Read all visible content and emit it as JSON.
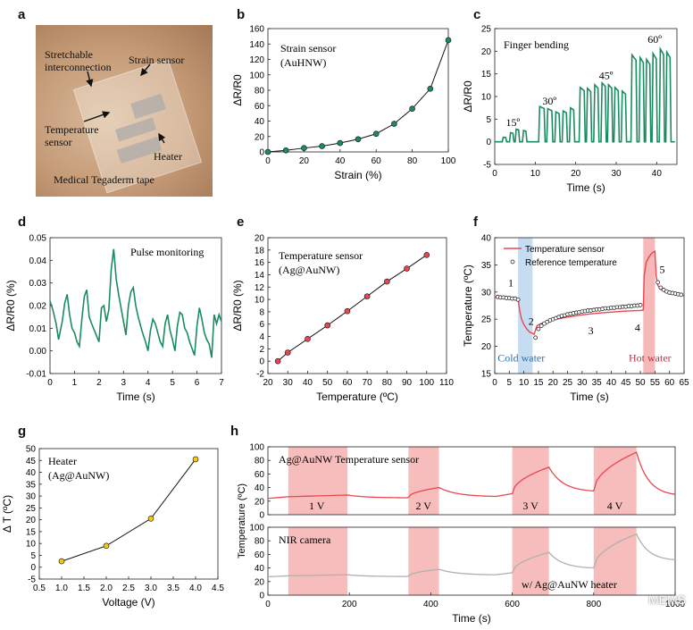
{
  "panel_letters": {
    "a": "a",
    "b": "b",
    "c": "c",
    "d": "d",
    "e": "e",
    "f": "f",
    "g": "g",
    "h": "h"
  },
  "photo": {
    "stretchable": "Stretchable",
    "interconnection": "interconnection",
    "strain_sensor": "Strain sensor",
    "temperature": "Temperature",
    "sensor": "sensor",
    "heater": "Heater",
    "tape": "Medical Tegaderm tape"
  },
  "watermark": "MEMS",
  "colors": {
    "green": "#1a8c5e",
    "red": "#e8474f",
    "yellow": "#f5c518",
    "gray": "#b0b0b0",
    "pink": "#f4a6a6",
    "blue": "#b8d4ee"
  },
  "chart_data": [
    {
      "id": "b",
      "type": "line",
      "xlabel": "Strain (%)",
      "ylabel": "ΔR/R0",
      "xlim": [
        0,
        100
      ],
      "ylim": [
        0,
        160
      ],
      "xticks": [
        "0",
        "20",
        "40",
        "60",
        "80",
        "100"
      ],
      "yticks": [
        "0",
        "20",
        "40",
        "60",
        "80",
        "100",
        "120",
        "140",
        "160"
      ],
      "annotation": [
        "Strain sensor",
        "(AuHNW)"
      ],
      "x": [
        0,
        10,
        20,
        30,
        40,
        50,
        60,
        70,
        80,
        90,
        100
      ],
      "y": [
        0,
        2,
        5,
        7.5,
        11.5,
        16.5,
        23.5,
        36.5,
        56,
        82,
        145
      ]
    },
    {
      "id": "c",
      "type": "line",
      "xlabel": "Time (s)",
      "ylabel": "ΔR/R0",
      "xlim": [
        0,
        45
      ],
      "ylim": [
        -5,
        25
      ],
      "xticks": [
        "0",
        "10",
        "20",
        "30",
        "40"
      ],
      "yticks": [
        "-5",
        "0",
        "5",
        "10",
        "15",
        "20",
        "25"
      ],
      "annotation": "Finger bending",
      "angle_labels": [
        {
          "text": "15º",
          "x": 4.5,
          "y": 3.5
        },
        {
          "text": "30º",
          "x": 13.5,
          "y": 8.2
        },
        {
          "text": "45º",
          "x": 27.5,
          "y": 13.8
        },
        {
          "text": "60º",
          "x": 39.5,
          "y": 21.8
        }
      ],
      "pulses": [
        {
          "s": 2.0,
          "e": 2.8,
          "h": 1.0
        },
        {
          "s": 3.8,
          "e": 4.6,
          "h": 2.0
        },
        {
          "s": 5.2,
          "e": 6.0,
          "h": 2.8
        },
        {
          "s": 7.0,
          "e": 7.8,
          "h": 2.5
        },
        {
          "s": 11.0,
          "e": 12.3,
          "h": 7.8
        },
        {
          "s": 13.0,
          "e": 14.2,
          "h": 7.3
        },
        {
          "s": 15.0,
          "e": 16.0,
          "h": 6.6
        },
        {
          "s": 16.8,
          "e": 17.8,
          "h": 6.8
        },
        {
          "s": 18.6,
          "e": 19.6,
          "h": 7.5
        },
        {
          "s": 21.0,
          "e": 22.2,
          "h": 12.0
        },
        {
          "s": 22.8,
          "e": 23.8,
          "h": 11.8
        },
        {
          "s": 24.6,
          "e": 25.6,
          "h": 12.6
        },
        {
          "s": 26.4,
          "e": 27.4,
          "h": 13.0
        },
        {
          "s": 28.0,
          "e": 29.0,
          "h": 12.6
        },
        {
          "s": 29.6,
          "e": 30.6,
          "h": 12.0
        },
        {
          "s": 31.4,
          "e": 32.4,
          "h": 11.2
        },
        {
          "s": 33.8,
          "e": 35.0,
          "h": 19.2
        },
        {
          "s": 35.8,
          "e": 36.8,
          "h": 18.6
        },
        {
          "s": 37.4,
          "e": 38.4,
          "h": 18.2
        },
        {
          "s": 39.0,
          "e": 40.0,
          "h": 19.5
        },
        {
          "s": 40.8,
          "e": 41.8,
          "h": 20.5
        },
        {
          "s": 42.4,
          "e": 43.4,
          "h": 19.8
        }
      ]
    },
    {
      "id": "d",
      "type": "line",
      "xlabel": "Time (s)",
      "ylabel": "ΔR/R0 (%)",
      "xlim": [
        0,
        7
      ],
      "ylim": [
        -0.01,
        0.05
      ],
      "xticks": [
        "0",
        "1",
        "2",
        "3",
        "4",
        "5",
        "6",
        "7"
      ],
      "yticks": [
        "-0.01",
        "0.00",
        "0.01",
        "0.02",
        "0.03",
        "0.04",
        "0.05"
      ],
      "annotation": "Pulse monitoring",
      "x": [
        0.0,
        0.12,
        0.25,
        0.35,
        0.5,
        0.6,
        0.7,
        0.8,
        0.9,
        1.0,
        1.1,
        1.2,
        1.3,
        1.4,
        1.5,
        1.6,
        1.7,
        1.85,
        2.0,
        2.1,
        2.2,
        2.3,
        2.4,
        2.5,
        2.6,
        2.7,
        2.8,
        2.95,
        3.1,
        3.2,
        3.3,
        3.4,
        3.5,
        3.6,
        3.75,
        3.9,
        4.0,
        4.1,
        4.2,
        4.3,
        4.4,
        4.5,
        4.6,
        4.7,
        4.8,
        4.9,
        5.0,
        5.1,
        5.2,
        5.3,
        5.4,
        5.5,
        5.6,
        5.7,
        5.8,
        5.9,
        6.0,
        6.1,
        6.2,
        6.3,
        6.4,
        6.5,
        6.6,
        6.7,
        6.8,
        6.9,
        7.0
      ],
      "y": [
        0.022,
        0.018,
        0.012,
        0.005,
        0.013,
        0.021,
        0.025,
        0.016,
        0.01,
        0.008,
        0.004,
        0.002,
        0.014,
        0.024,
        0.027,
        0.015,
        0.012,
        0.008,
        0.004,
        0.019,
        0.02,
        0.013,
        0.018,
        0.036,
        0.045,
        0.032,
        0.025,
        0.016,
        0.007,
        0.02,
        0.026,
        0.028,
        0.02,
        0.015,
        0.009,
        0.004,
        0.0,
        0.009,
        0.014,
        0.012,
        0.008,
        0.004,
        0.002,
        0.012,
        0.016,
        0.009,
        0.005,
        0.0,
        0.011,
        0.017,
        0.016,
        0.01,
        0.008,
        0.004,
        0.001,
        -0.002,
        0.011,
        0.019,
        0.014,
        0.008,
        0.005,
        0.003,
        -0.003,
        0.016,
        0.012,
        0.016,
        0.013
      ]
    },
    {
      "id": "e",
      "type": "line",
      "xlabel": "Temperature (ºC)",
      "ylabel": "ΔR/R0 (%)",
      "xlim": [
        20,
        110
      ],
      "ylim": [
        -2,
        20
      ],
      "xticks": [
        "20",
        "30",
        "40",
        "50",
        "60",
        "70",
        "80",
        "90",
        "100",
        "110"
      ],
      "yticks": [
        "-2",
        "0",
        "2",
        "4",
        "6",
        "8",
        "10",
        "12",
        "14",
        "16",
        "18",
        "20"
      ],
      "annotation": [
        "Temperature sensor",
        "(Ag@AuNW)"
      ],
      "x": [
        25,
        30,
        40,
        50,
        60,
        70,
        80,
        90,
        100
      ],
      "y": [
        0,
        1.4,
        3.6,
        5.8,
        8.1,
        10.5,
        12.9,
        15.0,
        17.2
      ]
    },
    {
      "id": "f",
      "type": "line",
      "xlabel": "Time (s)",
      "ylabel": "Temperature (ºC)",
      "xlim": [
        0,
        65
      ],
      "ylim": [
        15,
        40
      ],
      "xticks": [
        "0",
        "5",
        "10",
        "15",
        "20",
        "25",
        "30",
        "35",
        "40",
        "45",
        "50",
        "55",
        "60",
        "65"
      ],
      "yticks": [
        "15",
        "20",
        "25",
        "30",
        "35",
        "40"
      ],
      "legend": [
        "Temperature sensor",
        "Reference temperature"
      ],
      "region_labels": {
        "cold": "Cold water",
        "hot": "Hot water"
      },
      "stage_labels": [
        "1",
        "2",
        "3",
        "4",
        "5"
      ],
      "bands": [
        {
          "from": 8,
          "to": 13,
          "kind": "cold"
        },
        {
          "from": 51,
          "to": 55,
          "kind": "hot"
        }
      ],
      "sensor_x": [
        0,
        8,
        8.6,
        9.2,
        10,
        11,
        12,
        13,
        13.5,
        14.5,
        16,
        18,
        20,
        25,
        30,
        35,
        40,
        45,
        50,
        51,
        51.3,
        52,
        53,
        54,
        55,
        55.4,
        56,
        57,
        58,
        60,
        62,
        65
      ],
      "sensor_y": [
        29,
        28.8,
        26.5,
        25,
        24,
        23.2,
        22.6,
        22.4,
        22.2,
        23.8,
        24.2,
        24.6,
        24.9,
        25.4,
        25.8,
        26.1,
        26.3,
        26.5,
        26.6,
        26.7,
        33,
        35.5,
        36.5,
        37.2,
        37.5,
        33,
        31.2,
        30.5,
        30.2,
        29.9,
        29.6,
        29.3
      ],
      "ref_x": [
        1,
        2,
        3,
        4,
        5,
        6,
        7,
        8,
        14,
        15,
        16,
        17,
        18,
        19,
        20,
        21,
        22,
        23,
        24,
        25,
        26,
        27,
        28,
        29,
        30,
        31,
        32,
        33,
        34,
        35,
        36,
        37,
        38,
        39,
        40,
        41,
        42,
        43,
        44,
        45,
        46,
        47,
        48,
        49,
        50,
        56,
        57,
        58,
        59,
        60,
        61,
        62,
        63,
        64
      ],
      "ref_y": [
        29.1,
        29.0,
        29.0,
        28.9,
        28.9,
        28.8,
        28.8,
        28.6,
        21.6,
        23.2,
        23.8,
        24.2,
        24.5,
        24.8,
        25.0,
        25.2,
        25.4,
        25.6,
        25.7,
        25.9,
        26.0,
        26.1,
        26.2,
        26.3,
        26.4,
        26.5,
        26.6,
        26.6,
        26.7,
        26.8,
        26.8,
        26.9,
        27.0,
        27.0,
        27.1,
        27.1,
        27.2,
        27.2,
        27.3,
        27.3,
        27.4,
        27.4,
        27.5,
        27.5,
        27.6,
        31.8,
        30.8,
        30.4,
        30.1,
        29.9,
        29.8,
        29.7,
        29.6,
        29.5
      ]
    },
    {
      "id": "g",
      "type": "line",
      "xlabel": "Voltage (V)",
      "ylabel": "Δ T (ºC)",
      "xlim": [
        0.5,
        4.5
      ],
      "ylim": [
        -5,
        50
      ],
      "xticks": [
        "0.5",
        "1.0",
        "1.5",
        "2.0",
        "2.5",
        "3.0",
        "3.5",
        "4.0",
        "4.5"
      ],
      "yticks": [
        "-5",
        "0",
        "5",
        "10",
        "15",
        "20",
        "25",
        "30",
        "35",
        "40",
        "45",
        "50"
      ],
      "annotation": [
        "Heater",
        "(Ag@AuNW)"
      ],
      "x": [
        1,
        2,
        3,
        4
      ],
      "y": [
        2.5,
        9,
        20.5,
        45.5
      ]
    },
    {
      "id": "h",
      "type": "line",
      "xlabel": "Time (s)",
      "ylabel": "Temperature (ºC)",
      "xlim": [
        0,
        1000
      ],
      "xticks": [
        "0",
        "200",
        "400",
        "600",
        "800",
        "1000"
      ],
      "top": {
        "ylim": [
          0,
          100
        ],
        "yticks": [
          "0",
          "20",
          "40",
          "60",
          "80",
          "100"
        ],
        "annotation": "Ag@AuNW Temperature sensor",
        "series": [
          {
            "t": 0,
            "v": 24
          },
          {
            "t": 50,
            "v": 26.5
          },
          {
            "t": 195,
            "v": 29
          },
          {
            "t": 340,
            "v": 25
          },
          {
            "t": 345,
            "v": 25.5
          },
          {
            "t": 420,
            "v": 40
          },
          {
            "t": 560,
            "v": 27
          },
          {
            "t": 600,
            "v": 31
          },
          {
            "t": 690,
            "v": 70
          },
          {
            "t": 800,
            "v": 35
          },
          {
            "t": 905,
            "v": 92
          },
          {
            "t": 1000,
            "v": 30
          }
        ]
      },
      "bottom": {
        "ylim": [
          0,
          100
        ],
        "yticks": [
          "0",
          "20",
          "40",
          "60",
          "80",
          "100"
        ],
        "annotation": "NIR camera",
        "note": "w/ Ag@AuNW heater",
        "series": [
          {
            "t": 0,
            "v": 27
          },
          {
            "t": 50,
            "v": 28.5
          },
          {
            "t": 195,
            "v": 30
          },
          {
            "t": 340,
            "v": 27.5
          },
          {
            "t": 345,
            "v": 28
          },
          {
            "t": 420,
            "v": 38
          },
          {
            "t": 560,
            "v": 30
          },
          {
            "t": 600,
            "v": 33
          },
          {
            "t": 690,
            "v": 63
          },
          {
            "t": 800,
            "v": 40
          },
          {
            "t": 905,
            "v": 90
          },
          {
            "t": 1000,
            "v": 52
          }
        ]
      },
      "voltage_labels": [
        "1 V",
        "2 V",
        "3 V",
        "4 V"
      ],
      "bands": [
        [
          50,
          195
        ],
        [
          345,
          420
        ],
        [
          600,
          690
        ],
        [
          800,
          905
        ]
      ]
    }
  ]
}
